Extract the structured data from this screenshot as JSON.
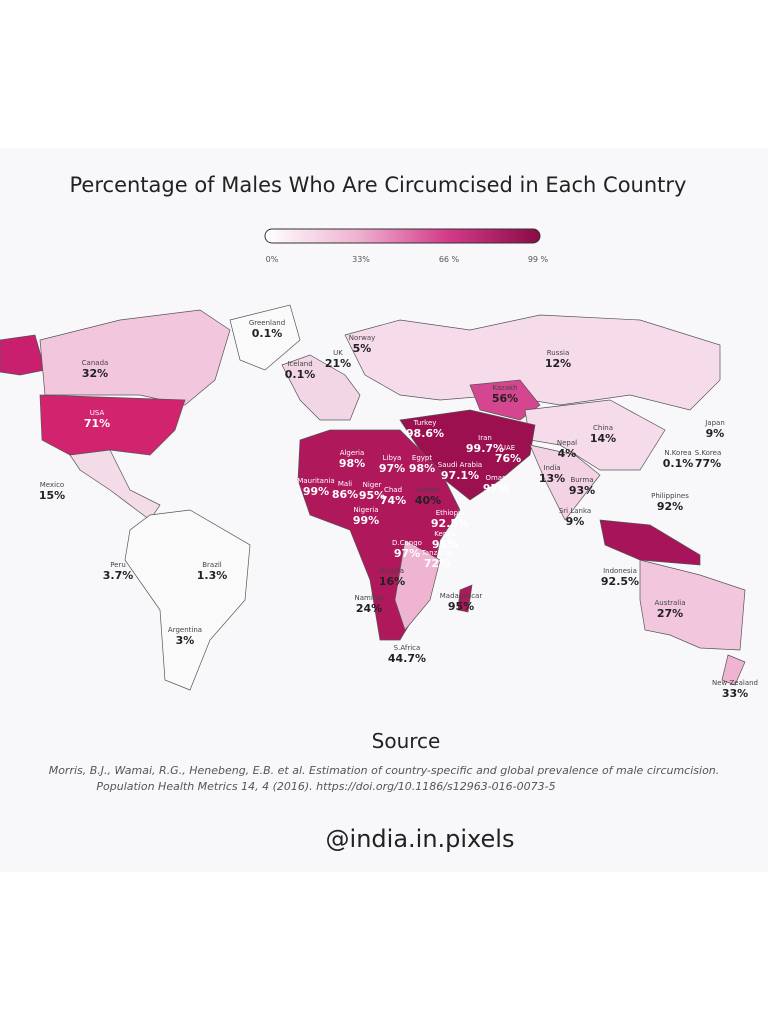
{
  "header": {
    "title": "Percentage of Males Who Are Circumcised in Each Country"
  },
  "legend": {
    "ticks": [
      "0%",
      "33%",
      "66 %",
      "99 %"
    ]
  },
  "countries": [
    {
      "name": "Greenland",
      "value": "0.1%"
    },
    {
      "name": "Canada",
      "value": "32%"
    },
    {
      "name": "USA",
      "value": "71%"
    },
    {
      "name": "Mexico",
      "value": "15%"
    },
    {
      "name": "Peru",
      "value": "3.7%"
    },
    {
      "name": "Brazil",
      "value": "1.3%"
    },
    {
      "name": "Argentina",
      "value": "3%"
    },
    {
      "name": "Iceland",
      "value": "0.1%"
    },
    {
      "name": "UK",
      "value": "21%"
    },
    {
      "name": "Norway",
      "value": "5%"
    },
    {
      "name": "Russia",
      "value": "12%"
    },
    {
      "name": "Kazakh",
      "value": "56%"
    },
    {
      "name": "China",
      "value": "14%"
    },
    {
      "name": "Japan",
      "value": "9%"
    },
    {
      "name": "N.Korea",
      "value": "0.1%"
    },
    {
      "name": "S.Korea",
      "value": "77%"
    },
    {
      "name": "India",
      "value": "13%"
    },
    {
      "name": "Nepal",
      "value": "4%"
    },
    {
      "name": "Burma",
      "value": "93%"
    },
    {
      "name": "Sri Lanka",
      "value": "9%"
    },
    {
      "name": "Philippines",
      "value": "92%"
    },
    {
      "name": "Indonesia",
      "value": "92.5%"
    },
    {
      "name": "Australia",
      "value": "27%"
    },
    {
      "name": "New Zealand",
      "value": "33%"
    },
    {
      "name": "Turkey",
      "value": "98.6%"
    },
    {
      "name": "Iran",
      "value": "99.7%"
    },
    {
      "name": "Algeria",
      "value": "98%"
    },
    {
      "name": "Libya",
      "value": "97%"
    },
    {
      "name": "Egypt",
      "value": "98%"
    },
    {
      "name": "Saudi Arabia",
      "value": "97.1%"
    },
    {
      "name": "Mauritania",
      "value": "99%"
    },
    {
      "name": "Mali",
      "value": "86%"
    },
    {
      "name": "Niger",
      "value": "95%"
    },
    {
      "name": "Chad",
      "value": "74%"
    },
    {
      "name": "Sudan",
      "value": "40%"
    },
    {
      "name": "Nigeria",
      "value": "99%"
    },
    {
      "name": "Ethiopia",
      "value": "92.5%"
    },
    {
      "name": "D.Congo",
      "value": "97%"
    },
    {
      "name": "Kenya",
      "value": "91%"
    },
    {
      "name": "Tanzania",
      "value": "72%"
    },
    {
      "name": "Angola",
      "value": "16%"
    },
    {
      "name": "Namibia",
      "value": "24%"
    },
    {
      "name": "Madagascar",
      "value": "95%"
    },
    {
      "name": "S.Africa",
      "value": "44.7%"
    },
    {
      "name": "Oman",
      "value": "97%"
    },
    {
      "name": "UAE",
      "value": "76%"
    }
  ],
  "source": {
    "heading": "Source",
    "lines": [
      "Morris, B.J., Wamai, R.G., Henebeng, E.B. et al. Estimation of country-specific and global prevalence of male circumcision.",
      "Population Health Metrics 14, 4 (2016). https://doi.org/10.1186/s12963-016-0073-5"
    ]
  },
  "footer": {
    "handle": "@india.in.pixels"
  }
}
